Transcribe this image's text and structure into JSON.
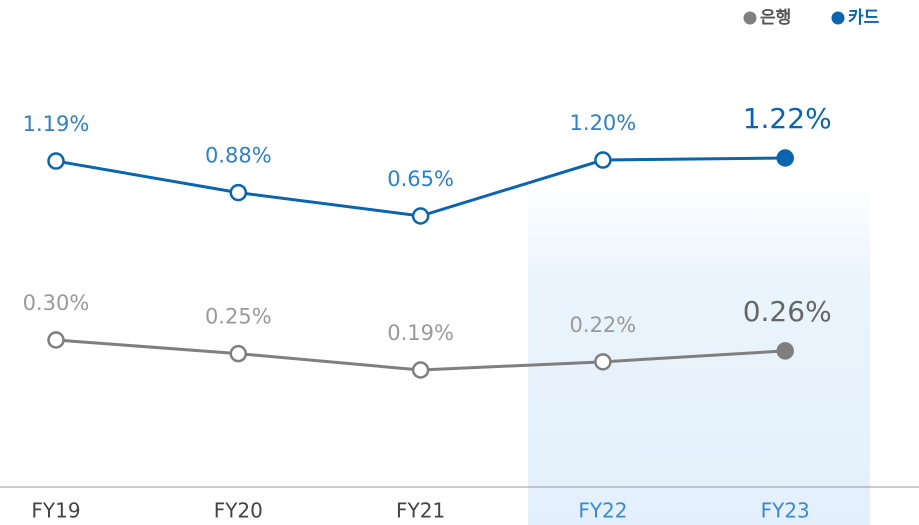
{
  "chart_data": {
    "type": "line",
    "categories": [
      "FY19",
      "FY20",
      "FY21",
      "FY22",
      "FY23"
    ],
    "series": [
      {
        "name": "은행",
        "color": "#7f7f7f",
        "values": [
          0.3,
          0.25,
          0.19,
          0.22,
          0.26
        ],
        "value_labels": [
          "0.30%",
          "0.25%",
          "0.19%",
          "0.22%",
          "0.26%"
        ]
      },
      {
        "name": "카드",
        "color": "#0a64b0",
        "values": [
          1.19,
          0.88,
          0.65,
          1.2,
          1.22
        ],
        "value_labels": [
          "1.19%",
          "0.88%",
          "0.65%",
          "1.20%",
          "1.22%"
        ]
      }
    ],
    "legend": "top-right"
  }
}
